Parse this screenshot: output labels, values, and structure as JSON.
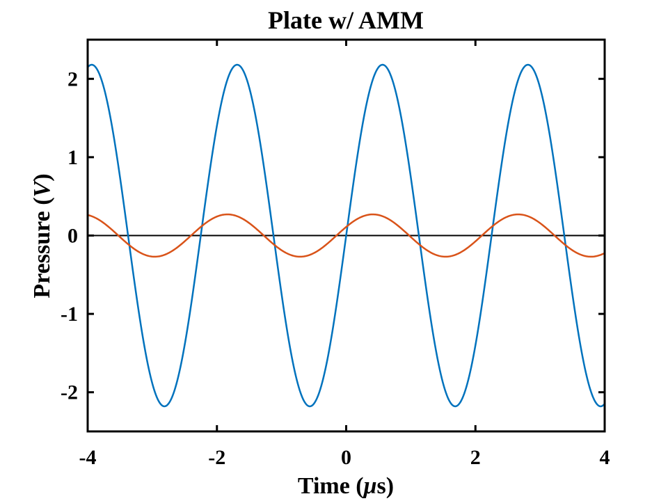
{
  "chart_data": {
    "type": "line",
    "title": "Plate w/ AMM",
    "xlabel": {
      "prefix": "Time (",
      "symbol": "μ",
      "suffix": "s)"
    },
    "ylabel": {
      "prefix": "Pressure (",
      "symbol": "V",
      "suffix": ")"
    },
    "xlim": [
      -4,
      4
    ],
    "ylim": [
      -2.5,
      2.5
    ],
    "xticks": [
      -4,
      -2,
      0,
      2,
      4
    ],
    "yticks": [
      -2,
      -1,
      0,
      1,
      2
    ],
    "xtick_labels": [
      "-4",
      "-2",
      "0",
      "2",
      "4"
    ],
    "ytick_labels": [
      "-2",
      "-1",
      "0",
      "1",
      "2"
    ],
    "grid": false,
    "zero_line": {
      "y": 0,
      "color": "#000000"
    },
    "series": [
      {
        "color": "#0072BD",
        "model": "sine",
        "amplitude": 2.18,
        "period": 2.25,
        "zero_crossing_rising": 0,
        "points": [
          [
            -4.0,
            2.17
          ],
          [
            -3.44,
            0.0
          ],
          [
            -2.875,
            -2.18
          ],
          [
            -2.31,
            0.0
          ],
          [
            -1.75,
            2.18
          ],
          [
            -1.125,
            0.0
          ],
          [
            -0.56,
            -2.18
          ],
          [
            0.0,
            0.0
          ],
          [
            0.56,
            2.18
          ],
          [
            1.125,
            0.0
          ],
          [
            1.69,
            -2.18
          ],
          [
            2.25,
            0.0
          ],
          [
            2.81,
            2.18
          ],
          [
            3.375,
            0.0
          ],
          [
            3.94,
            -2.18
          ],
          [
            4.0,
            -2.16
          ]
        ]
      },
      {
        "color": "#D95319",
        "model": "sine",
        "amplitude": 0.27,
        "period": 2.25,
        "zero_crossing_rising": -0.15,
        "points": [
          [
            -4.0,
            0.24
          ],
          [
            -3.525,
            0.0
          ],
          [
            -2.96,
            -0.27
          ],
          [
            -2.4,
            0.0
          ],
          [
            -1.84,
            0.27
          ],
          [
            -1.275,
            0.0
          ],
          [
            -0.71,
            -0.27
          ],
          [
            -0.15,
            0.0
          ],
          [
            0.41,
            0.27
          ],
          [
            0.975,
            0.0
          ],
          [
            1.54,
            -0.27
          ],
          [
            2.1,
            0.0
          ],
          [
            2.66,
            0.27
          ],
          [
            3.225,
            0.0
          ],
          [
            3.79,
            -0.27
          ],
          [
            4.0,
            -0.21
          ]
        ]
      }
    ]
  }
}
